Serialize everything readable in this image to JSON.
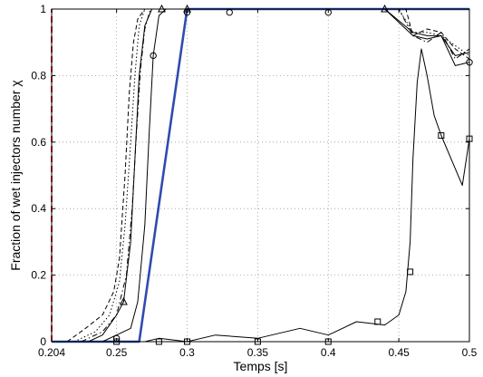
{
  "chart_data": {
    "type": "line",
    "xlabel": "Temps [s]",
    "ylabel": "Fraction of wet injectors number χ",
    "xlim": [
      0.204,
      0.5
    ],
    "ylim": [
      0,
      1
    ],
    "x_ticks": [
      0.204,
      0.25,
      0.3,
      0.35,
      0.4,
      0.45,
      0.5
    ],
    "x_tick_labels": [
      "0.204",
      "0.25",
      "0.3",
      "0.35",
      "0.4",
      "0.45",
      "0.5"
    ],
    "y_ticks": [
      0,
      0.2,
      0.4,
      0.6,
      0.8,
      1
    ],
    "y_tick_labels": [
      "0",
      "0.2",
      "0.4",
      "0.6",
      "0.8",
      "1"
    ],
    "grid": true,
    "legend": "none",
    "series": [
      {
        "style": "blue-thick",
        "color": "#2f4bb0",
        "x": [
          0.204,
          0.266,
          0.3,
          0.5
        ],
        "y": [
          0,
          0,
          1,
          1
        ]
      },
      {
        "style": "red-dashed",
        "color": "#e03030",
        "x": [
          0.204,
          0.204
        ],
        "y": [
          0,
          1
        ]
      },
      {
        "style": "dashed",
        "color": "#000000",
        "x": [
          0.215,
          0.228,
          0.24,
          0.248,
          0.252,
          0.256,
          0.259,
          0.262,
          0.265,
          0.27,
          0.28,
          0.3,
          0.35,
          0.4,
          0.44,
          0.455,
          0.46,
          0.47,
          0.48,
          0.49,
          0.5
        ],
        "y": [
          0,
          0.04,
          0.08,
          0.15,
          0.25,
          0.5,
          0.75,
          0.9,
          0.97,
          1,
          1,
          1,
          1,
          1,
          1,
          1,
          0.92,
          0.94,
          0.93,
          0.88,
          0.85
        ]
      },
      {
        "style": "dotted",
        "color": "#000000",
        "x": [
          0.22,
          0.235,
          0.245,
          0.252,
          0.256,
          0.26,
          0.263,
          0.266,
          0.27,
          0.28,
          0.3,
          0.35,
          0.4,
          0.45,
          0.46,
          0.47,
          0.48,
          0.5
        ],
        "y": [
          0,
          0.03,
          0.08,
          0.18,
          0.35,
          0.6,
          0.8,
          0.95,
          1,
          1,
          1,
          1,
          1,
          1,
          0.93,
          0.93,
          0.92,
          0.86
        ]
      },
      {
        "style": "dashdot",
        "color": "#000000",
        "x": [
          0.225,
          0.24,
          0.25,
          0.257,
          0.261,
          0.264,
          0.267,
          0.27,
          0.274,
          0.28,
          0.3,
          0.35,
          0.4,
          0.45,
          0.46,
          0.47,
          0.48,
          0.49,
          0.5
        ],
        "y": [
          0,
          0.03,
          0.08,
          0.2,
          0.4,
          0.62,
          0.82,
          0.94,
          1,
          1,
          1,
          1,
          1,
          1,
          0.92,
          0.9,
          0.93,
          0.85,
          0.88
        ]
      },
      {
        "style": "solid-triangle",
        "color": "#000000",
        "marker": "triangle",
        "x": [
          0.23,
          0.24,
          0.25,
          0.255,
          0.26,
          0.263,
          0.266,
          0.27,
          0.275,
          0.282,
          0.3,
          0.33,
          0.37,
          0.41,
          0.44,
          0.46,
          0.47,
          0.48,
          0.49,
          0.5
        ],
        "y": [
          0,
          0.02,
          0.08,
          0.12,
          0.3,
          0.55,
          0.8,
          0.95,
          1,
          1,
          1,
          1,
          1,
          1,
          1,
          0.93,
          0.92,
          0.92,
          0.86,
          0.87
        ],
        "marker_x": [
          0.255,
          0.282,
          0.3,
          0.44
        ],
        "marker_y": [
          0.12,
          1,
          1,
          1
        ]
      },
      {
        "style": "solid-circle",
        "color": "#000000",
        "marker": "circle",
        "x": [
          0.24,
          0.25,
          0.26,
          0.265,
          0.27,
          0.273,
          0.276,
          0.28,
          0.285,
          0.3,
          0.33,
          0.36,
          0.4,
          0.44,
          0.46,
          0.47,
          0.48,
          0.49,
          0.5
        ],
        "y": [
          0,
          0.02,
          0.04,
          0.12,
          0.35,
          0.62,
          0.86,
          0.98,
          1,
          1,
          1,
          1,
          1,
          1,
          0.92,
          0.91,
          0.92,
          0.83,
          0.84
        ],
        "marker_x": [
          0.25,
          0.276,
          0.3,
          0.33,
          0.4,
          0.5
        ],
        "marker_y": [
          0.01,
          0.86,
          0.99,
          0.99,
          0.99,
          0.84
        ]
      },
      {
        "style": "solid-square",
        "color": "#000000",
        "marker": "square",
        "x": [
          0.25,
          0.27,
          0.28,
          0.3,
          0.32,
          0.35,
          0.38,
          0.4,
          0.42,
          0.44,
          0.45,
          0.455,
          0.458,
          0.46,
          0.463,
          0.466,
          0.47,
          0.475,
          0.48,
          0.49,
          0.495,
          0.5
        ],
        "y": [
          0,
          0,
          0.01,
          0,
          0.02,
          0.01,
          0.04,
          0.02,
          0.06,
          0.05,
          0.08,
          0.15,
          0.3,
          0.55,
          0.78,
          0.88,
          0.8,
          0.68,
          0.62,
          0.52,
          0.47,
          0.61
        ],
        "marker_x": [
          0.25,
          0.28,
          0.3,
          0.35,
          0.4,
          0.435,
          0.458,
          0.48,
          0.5
        ],
        "marker_y": [
          0,
          0,
          0,
          0,
          0,
          0.06,
          0.21,
          0.62,
          0.61
        ]
      }
    ]
  }
}
